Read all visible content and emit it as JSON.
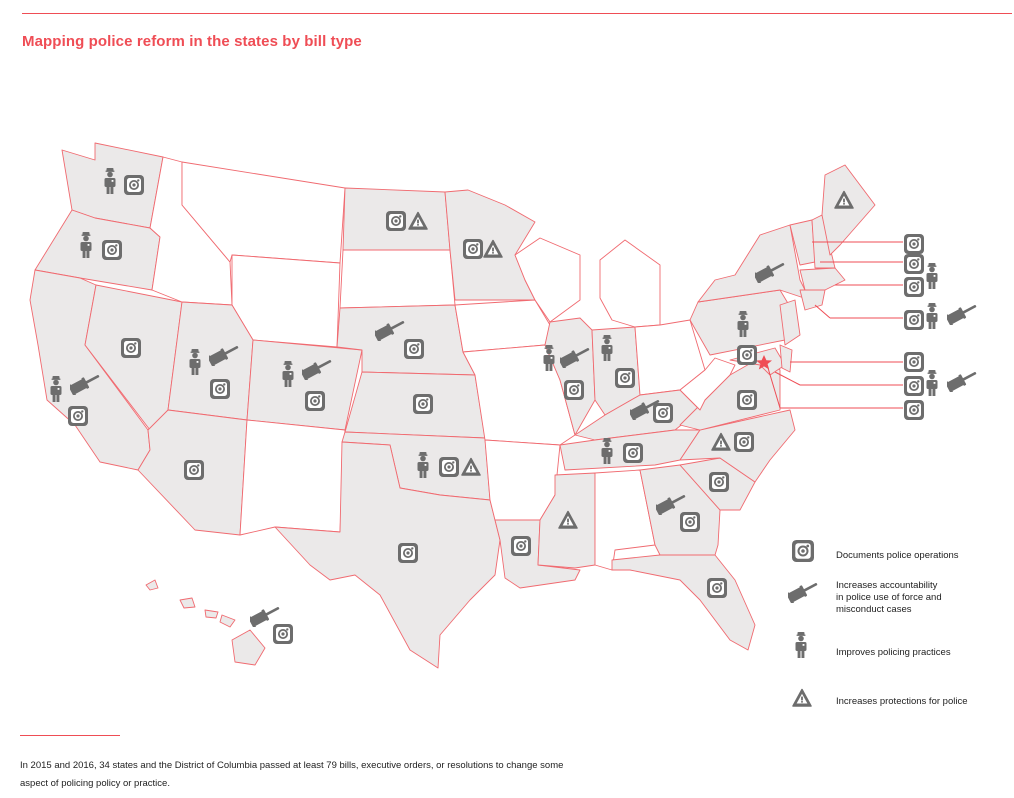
{
  "title": "Mapping police reform in the states by bill type",
  "legend": {
    "items": [
      {
        "icon": "camera-icon",
        "label": "Documents police operations"
      },
      {
        "icon": "gavel-icon",
        "label": "Increases accountability\nin police use of force and\nmisconduct cases"
      },
      {
        "icon": "police-officer-icon",
        "label": "Improves policing practices"
      },
      {
        "icon": "warning-triangle-icon",
        "label": "Increases protections for police"
      }
    ]
  },
  "footnote": "In 2015 and 2016, 34 states and the District of Columbia passed at least 79 bills, executive orders, or resolutions to change some aspect of policing policy or practice.",
  "colors": {
    "accent": "#ef4d55",
    "state_fill": "#ebe9e9",
    "state_border": "#f06a70",
    "icon": "#6d6d6d"
  },
  "capital_marker": "star-icon",
  "states": [
    {
      "name": "WA",
      "bills": [
        "police",
        "camera"
      ]
    },
    {
      "name": "OR",
      "bills": [
        "police",
        "camera"
      ]
    },
    {
      "name": "CA",
      "bills": [
        "police",
        "gavel",
        "camera"
      ]
    },
    {
      "name": "NV",
      "bills": [
        "camera"
      ]
    },
    {
      "name": "UT",
      "bills": [
        "police",
        "gavel",
        "camera"
      ]
    },
    {
      "name": "AZ",
      "bills": [
        "camera"
      ]
    },
    {
      "name": "CO",
      "bills": [
        "police",
        "gavel",
        "camera"
      ]
    },
    {
      "name": "ND",
      "bills": [
        "camera",
        "warning"
      ]
    },
    {
      "name": "MN",
      "bills": [
        "camera",
        "warning"
      ]
    },
    {
      "name": "NE",
      "bills": [
        "gavel",
        "camera"
      ]
    },
    {
      "name": "KS",
      "bills": [
        "camera"
      ]
    },
    {
      "name": "OK",
      "bills": [
        "police",
        "camera",
        "warning"
      ]
    },
    {
      "name": "TX",
      "bills": [
        "camera"
      ]
    },
    {
      "name": "LA",
      "bills": [
        "camera"
      ]
    },
    {
      "name": "MS",
      "bills": [
        "warning"
      ]
    },
    {
      "name": "IL",
      "bills": [
        "police",
        "gavel",
        "camera"
      ]
    },
    {
      "name": "IN",
      "bills": [
        "police",
        "camera"
      ]
    },
    {
      "name": "KY",
      "bills": [
        "gavel",
        "camera"
      ]
    },
    {
      "name": "TN",
      "bills": [
        "police",
        "camera"
      ]
    },
    {
      "name": "GA",
      "bills": [
        "gavel",
        "camera"
      ]
    },
    {
      "name": "FL",
      "bills": [
        "camera"
      ]
    },
    {
      "name": "SC",
      "bills": [
        "camera"
      ]
    },
    {
      "name": "NC",
      "bills": [
        "warning",
        "camera"
      ]
    },
    {
      "name": "VA",
      "bills": [
        "camera"
      ]
    },
    {
      "name": "PA",
      "bills": [
        "police",
        "camera"
      ]
    },
    {
      "name": "NY",
      "bills": [
        "gavel"
      ]
    },
    {
      "name": "ME",
      "bills": [
        "warning"
      ]
    },
    {
      "name": "HI",
      "bills": [
        "gavel",
        "camera"
      ]
    },
    {
      "name": "VT",
      "bills": [
        "camera"
      ]
    },
    {
      "name": "NH",
      "bills": [
        "camera",
        "police"
      ]
    },
    {
      "name": "MA",
      "bills": [
        "camera"
      ]
    },
    {
      "name": "CT",
      "bills": [
        "camera",
        "police",
        "gavel"
      ]
    },
    {
      "name": "DE",
      "bills": [
        "camera"
      ]
    },
    {
      "name": "MD",
      "bills": [
        "camera",
        "police",
        "gavel"
      ]
    },
    {
      "name": "DC",
      "bills": [
        "camera"
      ]
    }
  ]
}
